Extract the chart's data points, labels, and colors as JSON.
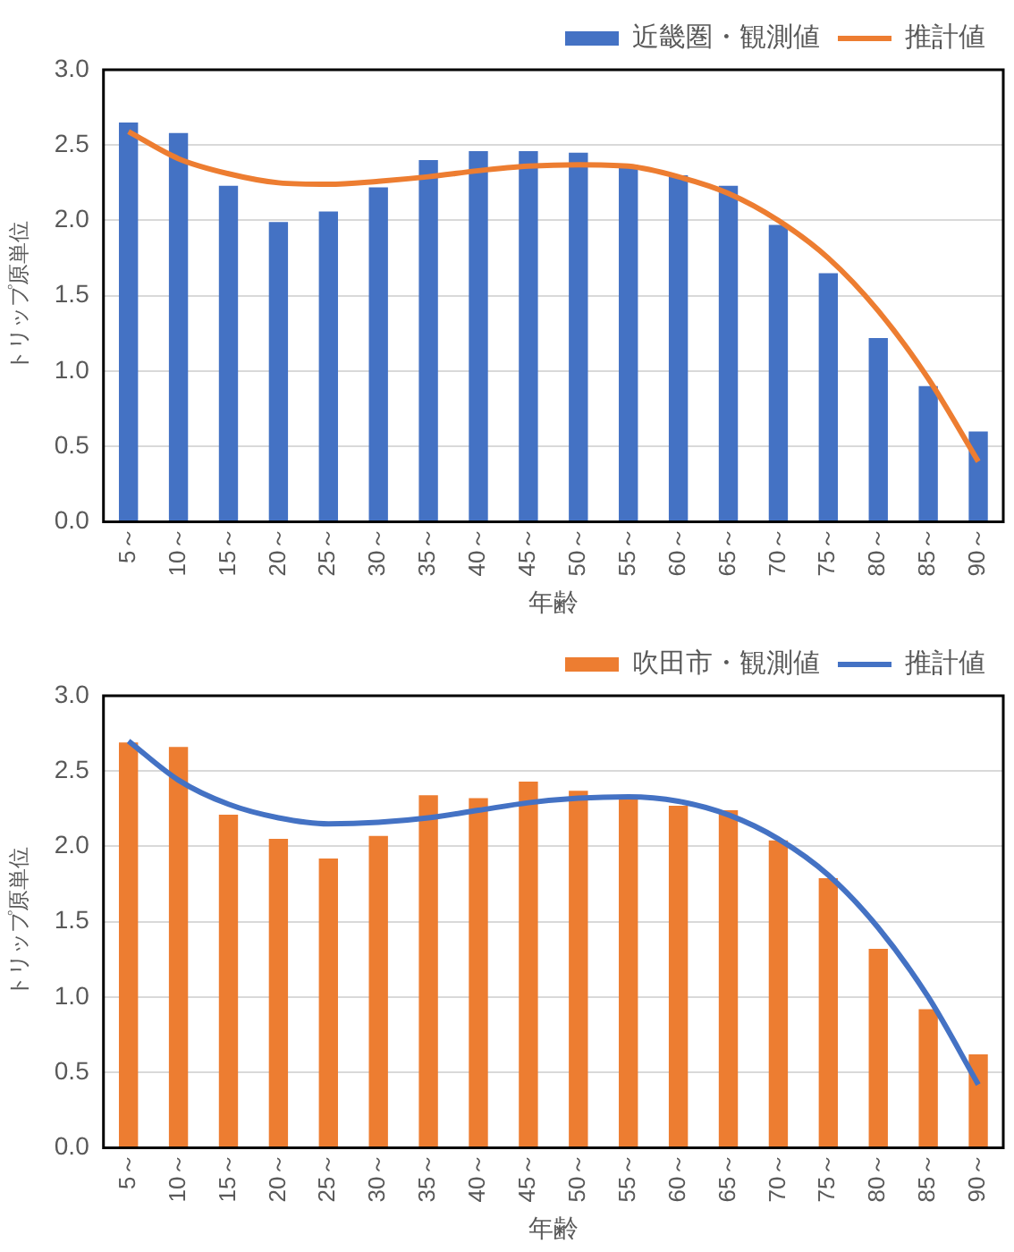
{
  "chart_data": [
    {
      "type": "bar",
      "categories": [
        "5～",
        "10～",
        "15～",
        "20～",
        "25～",
        "30～",
        "35～",
        "40～",
        "45～",
        "50～",
        "55～",
        "60～",
        "65～",
        "70～",
        "75～",
        "80～",
        "85～",
        "90～"
      ],
      "series": [
        {
          "name": "近畿圏・観測値",
          "type": "bar",
          "color": "#4472c4",
          "values": [
            2.65,
            2.58,
            2.23,
            1.99,
            2.06,
            2.22,
            2.4,
            2.46,
            2.46,
            2.45,
            2.37,
            2.3,
            2.23,
            1.97,
            1.65,
            1.22,
            0.9,
            0.6
          ]
        },
        {
          "name": "推計値",
          "type": "line",
          "color": "#ed7d31",
          "values": [
            2.59,
            2.41,
            2.31,
            2.25,
            2.24,
            2.26,
            2.29,
            2.33,
            2.36,
            2.37,
            2.36,
            2.29,
            2.18,
            2.0,
            1.75,
            1.4,
            0.95,
            0.4
          ]
        }
      ],
      "xlabel": "年齢",
      "ylabel": "トリップ原単位",
      "ylim": [
        0,
        3
      ],
      "yticks": [
        {
          "value": 0,
          "label": "0.0"
        },
        {
          "value": 0.5,
          "label": "0.5"
        },
        {
          "value": 1,
          "label": "1.0"
        },
        {
          "value": 1.5,
          "label": "1.5"
        },
        {
          "value": 2,
          "label": "2.0"
        },
        {
          "value": 2.5,
          "label": "2.5"
        },
        {
          "value": 3,
          "label": "3.0"
        }
      ],
      "grid": "y",
      "legend": "top right"
    },
    {
      "type": "bar",
      "categories": [
        "5～",
        "10～",
        "15～",
        "20～",
        "25～",
        "30～",
        "35～",
        "40～",
        "45～",
        "50～",
        "55～",
        "60～",
        "65～",
        "70～",
        "75～",
        "80～",
        "85～",
        "90～"
      ],
      "series": [
        {
          "name": "吹田市・観測値",
          "type": "bar",
          "color": "#ed7d31",
          "values": [
            2.69,
            2.66,
            2.21,
            2.05,
            1.92,
            2.07,
            2.34,
            2.32,
            2.43,
            2.37,
            2.33,
            2.27,
            2.24,
            2.04,
            1.79,
            1.32,
            0.92,
            0.62
          ]
        },
        {
          "name": "推計値",
          "type": "line",
          "color": "#4472c4",
          "values": [
            2.7,
            2.44,
            2.28,
            2.19,
            2.15,
            2.16,
            2.19,
            2.24,
            2.29,
            2.32,
            2.33,
            2.3,
            2.21,
            2.05,
            1.81,
            1.46,
            1.0,
            0.42
          ]
        }
      ],
      "xlabel": "年齢",
      "ylabel": "トリップ原単位",
      "ylim": [
        0,
        3
      ],
      "yticks": [
        {
          "value": 0,
          "label": "0.0"
        },
        {
          "value": 0.5,
          "label": "0.5"
        },
        {
          "value": 1,
          "label": "1.0"
        },
        {
          "value": 1.5,
          "label": "1.5"
        },
        {
          "value": 2,
          "label": "2.0"
        },
        {
          "value": 2.5,
          "label": "2.5"
        },
        {
          "value": 3,
          "label": "3.0"
        }
      ],
      "grid": "y",
      "legend": "top right"
    }
  ]
}
